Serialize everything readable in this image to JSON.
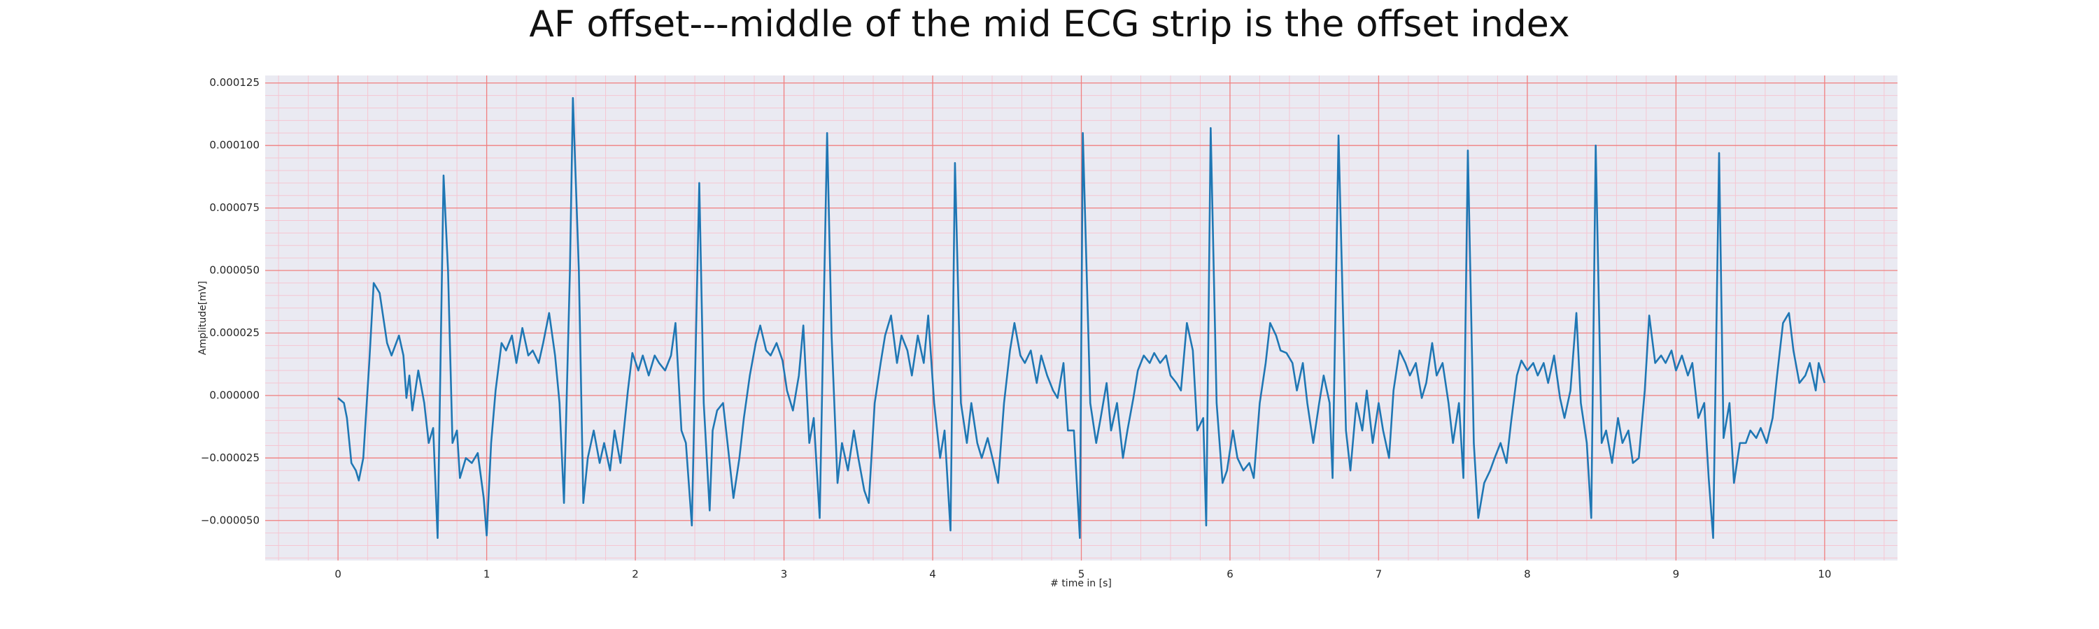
{
  "chart_data": {
    "type": "line",
    "title": "AF offset---middle of the mid ECG strip is the offset index",
    "x_label": "# time in [s]",
    "y_label": "Amplitude[mV]",
    "color": "#1f77b4",
    "grid": true,
    "grid_color": "#f08080",
    "minor_grid": true,
    "minor_grid_color": "#f5c6d2",
    "xlim": [
      -0.49,
      10.49
    ],
    "ylim": [
      -6.6e-05,
      0.000128
    ],
    "xticks": [
      0,
      1,
      2,
      3,
      4,
      5,
      6,
      7,
      8,
      9,
      10
    ],
    "yticks": [
      {
        "value": -5e-05,
        "label": "−0.000050"
      },
      {
        "value": -2.5e-05,
        "label": "−0.000025"
      },
      {
        "value": 0,
        "label": "0.000000"
      },
      {
        "value": 2.5e-05,
        "label": "0.000025"
      },
      {
        "value": 5e-05,
        "label": "0.000050"
      },
      {
        "value": 7.5e-05,
        "label": "0.000075"
      },
      {
        "value": 0.0001,
        "label": "0.000100"
      },
      {
        "value": 0.000125,
        "label": "0.000125"
      }
    ],
    "x": [
      0.0,
      0.04,
      0.06,
      0.09,
      0.12,
      0.14,
      0.17,
      0.21,
      0.24,
      0.28,
      0.33,
      0.36,
      0.41,
      0.44,
      0.46,
      0.48,
      0.5,
      0.52,
      0.54,
      0.58,
      0.61,
      0.64,
      0.67,
      0.71,
      0.74,
      0.77,
      0.8,
      0.82,
      0.86,
      0.9,
      0.94,
      0.98,
      1.0,
      1.03,
      1.06,
      1.1,
      1.13,
      1.17,
      1.2,
      1.24,
      1.28,
      1.31,
      1.35,
      1.38,
      1.42,
      1.46,
      1.49,
      1.52,
      1.56,
      1.58,
      1.62,
      1.65,
      1.68,
      1.72,
      1.76,
      1.79,
      1.83,
      1.86,
      1.9,
      1.95,
      1.98,
      2.02,
      2.05,
      2.09,
      2.13,
      2.16,
      2.2,
      2.24,
      2.27,
      2.31,
      2.34,
      2.38,
      2.43,
      2.46,
      2.5,
      2.52,
      2.55,
      2.59,
      2.62,
      2.66,
      2.7,
      2.73,
      2.77,
      2.81,
      2.84,
      2.88,
      2.91,
      2.95,
      2.99,
      3.02,
      3.06,
      3.1,
      3.13,
      3.17,
      3.2,
      3.24,
      3.29,
      3.32,
      3.36,
      3.39,
      3.43,
      3.47,
      3.5,
      3.54,
      3.57,
      3.61,
      3.65,
      3.68,
      3.72,
      3.76,
      3.79,
      3.83,
      3.86,
      3.9,
      3.94,
      3.97,
      4.01,
      4.05,
      4.08,
      4.12,
      4.15,
      4.19,
      4.23,
      4.26,
      4.3,
      4.33,
      4.37,
      4.41,
      4.44,
      4.48,
      4.52,
      4.55,
      4.59,
      4.62,
      4.66,
      4.7,
      4.73,
      4.77,
      4.81,
      4.84,
      4.88,
      4.91,
      4.95,
      4.99,
      5.01,
      5.06,
      5.1,
      5.13,
      5.17,
      5.2,
      5.24,
      5.28,
      5.31,
      5.35,
      5.38,
      5.42,
      5.46,
      5.49,
      5.53,
      5.57,
      5.6,
      5.64,
      5.67,
      5.71,
      5.75,
      5.78,
      5.82,
      5.84,
      5.87,
      5.91,
      5.95,
      5.98,
      6.02,
      6.05,
      6.09,
      6.13,
      6.16,
      6.2,
      6.24,
      6.27,
      6.31,
      6.34,
      6.38,
      6.42,
      6.45,
      6.49,
      6.52,
      6.56,
      6.6,
      6.63,
      6.67,
      6.69,
      6.73,
      6.78,
      6.81,
      6.85,
      6.89,
      6.92,
      6.96,
      7.0,
      7.03,
      7.07,
      7.1,
      7.14,
      7.18,
      7.21,
      7.25,
      7.29,
      7.32,
      7.36,
      7.39,
      7.43,
      7.47,
      7.5,
      7.54,
      7.57,
      7.6,
      7.64,
      7.67,
      7.71,
      7.75,
      7.78,
      7.82,
      7.86,
      7.89,
      7.93,
      7.96,
      8.0,
      8.04,
      8.07,
      8.11,
      8.14,
      8.18,
      8.22,
      8.25,
      8.29,
      8.33,
      8.36,
      8.4,
      8.43,
      8.46,
      8.5,
      8.53,
      8.57,
      8.61,
      8.64,
      8.68,
      8.71,
      8.75,
      8.79,
      8.82,
      8.86,
      8.9,
      8.93,
      8.97,
      9.0,
      9.04,
      9.08,
      9.11,
      9.15,
      9.19,
      9.22,
      9.25,
      9.29,
      9.32,
      9.36,
      9.39,
      9.43,
      9.47,
      9.5,
      9.54,
      9.57,
      9.61,
      9.65,
      9.68,
      9.72,
      9.76,
      9.79,
      9.83,
      9.87,
      9.9,
      9.94,
      9.96,
      10.0
    ],
    "values": [
      -1e-06,
      -3e-06,
      -9e-06,
      -2.7e-05,
      -3e-05,
      -3.4e-05,
      -2.5e-05,
      1.3e-05,
      4.5e-05,
      4.1e-05,
      2.1e-05,
      1.6e-05,
      2.4e-05,
      1.6e-05,
      -1e-06,
      8e-06,
      -6e-06,
      2e-06,
      1e-05,
      -3e-06,
      -1.9e-05,
      -1.3e-05,
      -5.7e-05,
      8.8e-05,
      5e-05,
      -1.9e-05,
      -1.4e-05,
      -3.3e-05,
      -2.5e-05,
      -2.7e-05,
      -2.3e-05,
      -4.1e-05,
      -5.6e-05,
      -1.9e-05,
      2e-06,
      2.1e-05,
      1.8e-05,
      2.4e-05,
      1.3e-05,
      2.7e-05,
      1.6e-05,
      1.8e-05,
      1.3e-05,
      2.1e-05,
      3.3e-05,
      1.6e-05,
      -3e-06,
      -4.3e-05,
      5e-05,
      0.000119,
      5e-05,
      -4.3e-05,
      -2.5e-05,
      -1.4e-05,
      -2.7e-05,
      -1.9e-05,
      -3e-05,
      -1.4e-05,
      -2.7e-05,
      2e-06,
      1.7e-05,
      1e-05,
      1.6e-05,
      8e-06,
      1.6e-05,
      1.3e-05,
      1e-05,
      1.6e-05,
      2.9e-05,
      -1.4e-05,
      -1.9e-05,
      -5.2e-05,
      8.5e-05,
      -3e-06,
      -4.6e-05,
      -1.4e-05,
      -6e-06,
      -3e-06,
      -1.9e-05,
      -4.1e-05,
      -2.5e-05,
      -9e-06,
      8e-06,
      2.1e-05,
      2.8e-05,
      1.8e-05,
      1.6e-05,
      2.1e-05,
      1.4e-05,
      2e-06,
      -6e-06,
      8e-06,
      2.8e-05,
      -1.9e-05,
      -9e-06,
      -4.9e-05,
      0.000105,
      2.4e-05,
      -3.5e-05,
      -1.9e-05,
      -3e-05,
      -1.4e-05,
      -2.5e-05,
      -3.8e-05,
      -4.3e-05,
      -3e-06,
      1.3e-05,
      2.4e-05,
      3.2e-05,
      1.3e-05,
      2.4e-05,
      1.8e-05,
      8e-06,
      2.4e-05,
      1.3e-05,
      3.2e-05,
      -3e-06,
      -2.5e-05,
      -1.4e-05,
      -5.4e-05,
      9.3e-05,
      -3e-06,
      -1.9e-05,
      -3e-06,
      -1.9e-05,
      -2.5e-05,
      -1.7e-05,
      -2.7e-05,
      -3.5e-05,
      -3e-06,
      1.8e-05,
      2.9e-05,
      1.6e-05,
      1.3e-05,
      1.8e-05,
      5e-06,
      1.6e-05,
      8e-06,
      2e-06,
      -1e-06,
      1.3e-05,
      -1.4e-05,
      -1.4e-05,
      -5.7e-05,
      0.000105,
      -3e-06,
      -1.9e-05,
      -9e-06,
      5e-06,
      -1.4e-05,
      -3e-06,
      -2.5e-05,
      -1.4e-05,
      -1e-06,
      1e-05,
      1.6e-05,
      1.3e-05,
      1.7e-05,
      1.3e-05,
      1.6e-05,
      8e-06,
      5e-06,
      2e-06,
      2.9e-05,
      1.8e-05,
      -1.4e-05,
      -9e-06,
      -5.2e-05,
      0.000107,
      -3e-06,
      -3.5e-05,
      -3e-05,
      -1.4e-05,
      -2.5e-05,
      -3e-05,
      -2.7e-05,
      -3.3e-05,
      -3e-06,
      1.3e-05,
      2.9e-05,
      2.4e-05,
      1.8e-05,
      1.7e-05,
      1.3e-05,
      2e-06,
      1.3e-05,
      -3e-06,
      -1.9e-05,
      -3e-06,
      8e-06,
      -3e-06,
      -3.3e-05,
      0.000104,
      -1.4e-05,
      -3e-05,
      -3e-06,
      -1.4e-05,
      2e-06,
      -1.9e-05,
      -3e-06,
      -1.4e-05,
      -2.5e-05,
      2e-06,
      1.8e-05,
      1.3e-05,
      8e-06,
      1.3e-05,
      -1e-06,
      5e-06,
      2.1e-05,
      8e-06,
      1.3e-05,
      -3e-06,
      -1.9e-05,
      -3e-06,
      -3.3e-05,
      9.8e-05,
      -1.9e-05,
      -4.9e-05,
      -3.5e-05,
      -3e-05,
      -2.5e-05,
      -1.9e-05,
      -2.7e-05,
      -1.1e-05,
      8e-06,
      1.4e-05,
      1e-05,
      1.3e-05,
      8e-06,
      1.3e-05,
      5e-06,
      1.6e-05,
      -1e-06,
      -9e-06,
      2e-06,
      3.3e-05,
      -3e-06,
      -1.9e-05,
      -4.9e-05,
      0.0001,
      -1.9e-05,
      -1.4e-05,
      -2.7e-05,
      -9e-06,
      -1.9e-05,
      -1.4e-05,
      -2.7e-05,
      -2.5e-05,
      2e-06,
      3.2e-05,
      1.3e-05,
      1.6e-05,
      1.3e-05,
      1.8e-05,
      1e-05,
      1.6e-05,
      8e-06,
      1.3e-05,
      -9e-06,
      -3e-06,
      -3.3e-05,
      -5.7e-05,
      9.7e-05,
      -1.7e-05,
      -3e-06,
      -3.5e-05,
      -1.9e-05,
      -1.9e-05,
      -1.4e-05,
      -1.7e-05,
      -1.3e-05,
      -1.9e-05,
      -9e-06,
      8e-06,
      2.9e-05,
      3.3e-05,
      1.8e-05,
      5e-06,
      8e-06,
      1.3e-05,
      2e-06,
      1.3e-05,
      5e-06
    ]
  }
}
